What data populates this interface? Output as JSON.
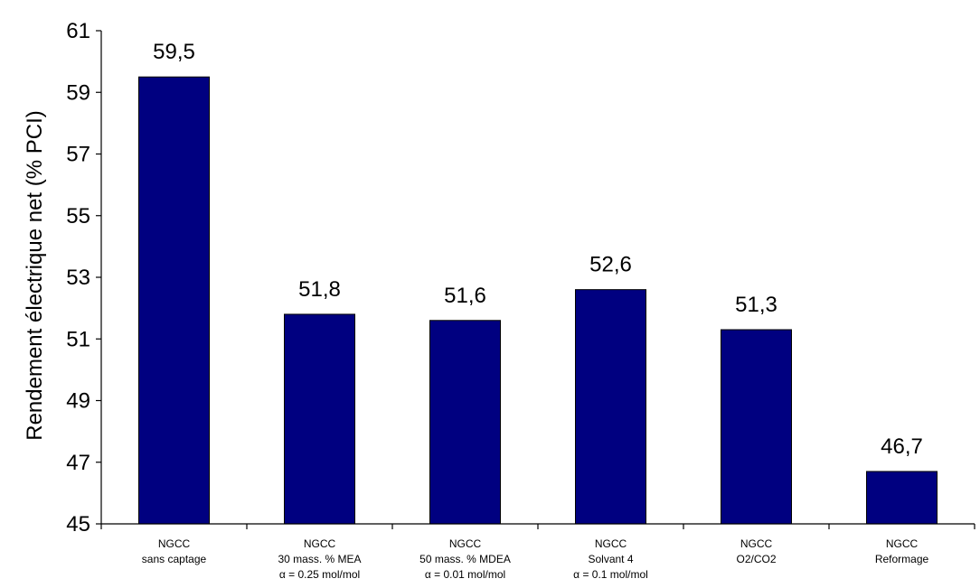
{
  "chart_data": {
    "type": "bar",
    "title": "",
    "xlabel": "",
    "ylabel": "Rendement électrique net (% PCI)",
    "ylim": [
      45,
      61
    ],
    "yticks": [
      45,
      47,
      49,
      51,
      53,
      55,
      57,
      59,
      61
    ],
    "grid": false,
    "legend": "none",
    "bar_color": "#000080",
    "categories": [
      [
        "NGCC",
        "sans captage"
      ],
      [
        "NGCC",
        "30 mass. % MEA",
        "α = 0.25 mol/mol"
      ],
      [
        "NGCC",
        "50 mass. % MDEA",
        "α = 0.01 mol/mol"
      ],
      [
        "NGCC",
        "Solvant 4",
        "α = 0.1 mol/mol"
      ],
      [
        "NGCC",
        "O2/CO2"
      ],
      [
        "NGCC",
        "Reformage"
      ]
    ],
    "values": [
      59.5,
      51.8,
      51.6,
      52.6,
      51.3,
      46.7
    ],
    "data_labels": [
      "59,5",
      "51,8",
      "51,6",
      "52,6",
      "51,3",
      "46,7"
    ]
  }
}
